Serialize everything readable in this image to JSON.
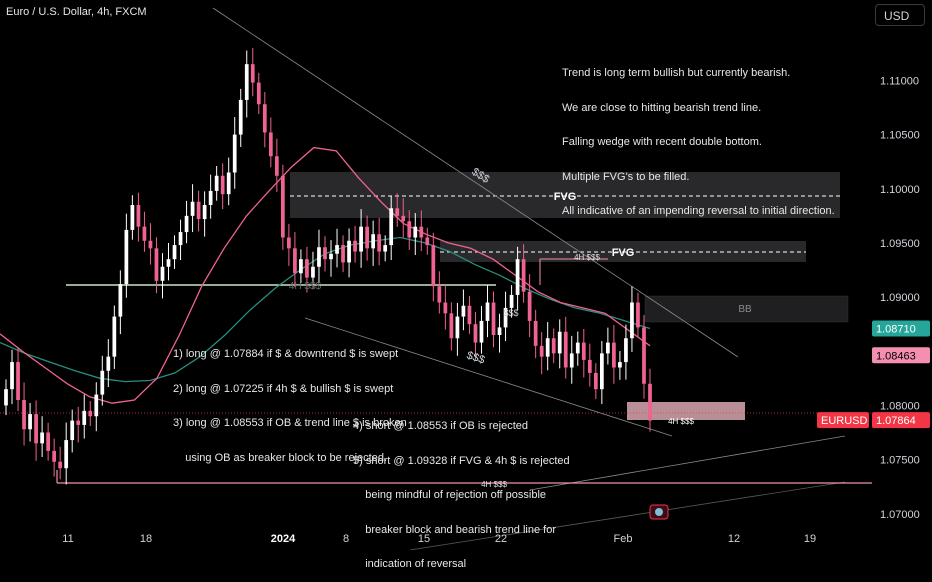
{
  "title": "Euro / U.S. Dollar, 4h, FXCM",
  "currency_button": "USD",
  "notes": {
    "top_right": [
      "Trend is long term bullish but currently bearish.",
      "We are close to hitting bearish trend line.",
      "Falling wedge with recent double bottom.",
      "Multiple FVG's to be filled.",
      "All indicative of an impending reversal to initial direction."
    ],
    "longs": [
      "1) long @ 1.07884 if $ & downtrend $ is swept",
      "2) long @ 1.07225 if 4h $ & bullish $ is swept",
      "3) long @ 1.08553 if OB & trend line $ is broken",
      "    using OB as breaker block to be rejected."
    ],
    "shorts": [
      "4) short @ 1.08553 if OB is rejected",
      "5) short @ 1.09328 if FVG & 4h $ is rejected",
      "    being mindful of rejection off possible",
      "    breaker block and bearish trend line for",
      "    indication of reversal"
    ]
  },
  "annotations": {
    "fvg1": "FVG",
    "fvg2": "FVG",
    "bb": "BB",
    "liq_4h_top": "4H $$$",
    "liq_4h_left": "4H $$$",
    "liq_4h_box": "4H $$$",
    "liq_4h_bottom": "4H $$$",
    "dollars_trend": "$$$",
    "dollars_mid": "$$$",
    "dollars_low": "$$$"
  },
  "chart_data": {
    "type": "candlestick",
    "symbol": "EURUSD",
    "timeframe": "4h",
    "ylim": [
      1.0685,
      1.1165
    ],
    "y_ticks": [
      "1.11000",
      "1.10500",
      "1.10000",
      "1.09500",
      "1.09000",
      "1.08500",
      "1.08000",
      "1.07500",
      "1.07000"
    ],
    "y_tick_values": [
      1.11,
      1.105,
      1.1,
      1.095,
      1.09,
      1.085,
      1.08,
      1.075,
      1.07
    ],
    "x_ticks": [
      "11",
      "18",
      "2024",
      "8",
      "15",
      "22",
      "Feb",
      "12",
      "19"
    ],
    "price_labels": [
      {
        "label": "1.08710",
        "value": 1.0871,
        "color": "#26a69a"
      },
      {
        "label": "1.08463",
        "value": 1.08463,
        "color": "#f48fb1"
      },
      {
        "label": "EURUSD",
        "value": 1.07864,
        "color": "#f23645"
      },
      {
        "label": "1.07864",
        "value": 1.07864,
        "color": "#f23645"
      }
    ],
    "closes": [
      1.0815,
      1.084,
      1.0805,
      1.0778,
      1.0792,
      1.0765,
      1.0775,
      1.0758,
      1.0748,
      1.0742,
      1.0768,
      1.0786,
      1.0782,
      1.0795,
      1.079,
      1.081,
      1.0832,
      1.0845,
      1.0882,
      1.0912,
      1.0962,
      1.0985,
      1.0965,
      1.0952,
      1.0945,
      1.0915,
      1.0928,
      1.0935,
      1.0948,
      1.096,
      1.0975,
      1.0988,
      1.0972,
      1.0985,
      1.0998,
      1.1012,
      1.0995,
      1.1015,
      1.105,
      1.1082,
      1.1115,
      1.1098,
      1.1078,
      1.1052,
      1.103,
      1.1012,
      1.0955,
      1.0945,
      1.0922,
      1.0935,
      1.0918,
      1.0928,
      1.0946,
      1.0935,
      1.094,
      1.0948,
      1.0932,
      1.0952,
      1.0942,
      1.0965,
      1.0945,
      1.0958,
      1.0942,
      1.0948,
      1.0982,
      1.0975,
      1.097,
      1.0955,
      1.0965,
      1.0955,
      1.0948,
      1.091,
      1.0895,
      1.0885,
      1.0862,
      1.0882,
      1.0892,
      1.0875,
      1.0858,
      1.0878,
      1.0895,
      1.0865,
      1.0872,
      1.089,
      1.0902,
      1.0935,
      1.0905,
      1.0878,
      1.0855,
      1.0845,
      1.0862,
      1.0848,
      1.0868,
      1.0835,
      1.0848,
      1.0858,
      1.0842,
      1.083,
      1.0815,
      1.0848,
      1.0858,
      1.0835,
      1.084,
      1.0862,
      1.0895,
      1.0872,
      1.082,
      1.0786
    ],
    "ema_fast": [
      1.0866,
      1.085,
      1.0835,
      1.082,
      1.0808,
      1.0802,
      1.0805,
      1.0825,
      1.0865,
      1.091,
      1.0945,
      1.0975,
      1.0998,
      1.102,
      1.1038,
      1.1035,
      1.101,
      1.0988,
      1.0968,
      1.0958,
      1.095,
      1.0945,
      1.0935,
      1.092,
      1.0905,
      1.0895,
      1.089,
      1.0885,
      1.087,
      1.0855
    ],
    "ema_slow": [
      1.0858,
      1.0848,
      1.084,
      1.0832,
      1.0825,
      1.0822,
      1.0823,
      1.083,
      1.0845,
      1.0865,
      1.0888,
      1.0908,
      1.0925,
      1.094,
      1.0948,
      1.0952,
      1.0955,
      1.095,
      1.0942,
      1.093,
      1.092,
      1.0908,
      1.0898,
      1.089,
      1.0885,
      1.0878,
      1.0871
    ],
    "legend_position": "none",
    "grid": false
  }
}
